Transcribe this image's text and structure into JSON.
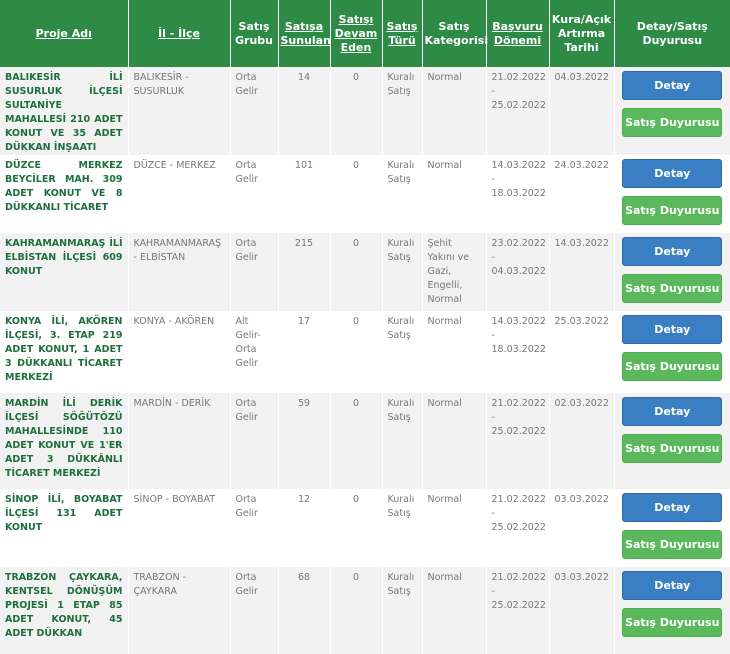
{
  "headers": {
    "proje": "Proje Adı",
    "il": "İl - İlçe",
    "satis_grubu": "Satış Grubu",
    "satisa_sunulan": "Satışa Sunulan",
    "satisi_devam": "Satışı Devam Eden",
    "satis_turu": "Satış Türü",
    "satis_kategorisi": "Satış Kategorisi",
    "basvuru_donemi": "Başvuru Dönemi",
    "kura_tarihi": "Kura/Açık Artırma Tarihi",
    "detay_duyuru": "Detay/Satış Duyurusu"
  },
  "buttons": {
    "detay": "Detay",
    "satis_duyurusu": "Satış Duyurusu"
  },
  "rows": [
    {
      "proje": "BALIKESİR İLİ SUSURLUK İLÇESİ SULTANİYE MAHALLESİ 210 ADET KONUT VE 35 ADET DÜKKAN İNŞAATI",
      "il": "BALIKESİR - SUSURLUK",
      "grup": "Orta Gelir",
      "sunulan": "14",
      "devam": "0",
      "tur": "Kuralı Satış",
      "kategori": "Normal",
      "basvuru": "21.02.2022 - 25.02.2022",
      "kura": "04.03.2022"
    },
    {
      "proje": "DÜZCE MERKEZ BEYCİLER MAH. 309 ADET KONUT VE 8 DÜKKANLI TİCARET",
      "il": "DÜZCE - MERKEZ",
      "grup": "Orta Gelir",
      "sunulan": "101",
      "devam": "0",
      "tur": "Kuralı Satış",
      "kategori": "Normal",
      "basvuru": "14.03.2022 - 18.03.2022",
      "kura": "24.03.2022"
    },
    {
      "proje": "KAHRAMANMARAŞ İLİ ELBİSTAN İLÇESİ 609 KONUT",
      "il": "KAHRAMANMARAŞ - ELBİSTAN",
      "grup": "Orta Gelir",
      "sunulan": "215",
      "devam": "0",
      "tur": "Kuralı Satış",
      "kategori": "Şehit Yakını ve Gazi, Engelli, Normal",
      "basvuru": "23.02.2022 - 04.03.2022",
      "kura": "14.03.2022"
    },
    {
      "proje": "KONYA İLİ, AKÖREN İLÇESİ, 3. ETAP 219 ADET KONUT, 1 ADET 3 DÜKKANLI TİCARET MERKEZİ",
      "il": "KONYA - AKÖREN",
      "grup": "Alt Gelir-Orta Gelir",
      "sunulan": "17",
      "devam": "0",
      "tur": "Kuralı Satış",
      "kategori": "Normal",
      "basvuru": "14.03.2022 - 18.03.2022",
      "kura": "25.03.2022"
    },
    {
      "proje": "MARDİN İLİ DERİK İLÇESİ SÖĞÜTÖZÜ MAHALLESİNDE 110 ADET KONUT VE 1'ER ADET 3 DÜKKÂNLI TİCARET MERKEZİ",
      "il": "MARDİN - DERİK",
      "grup": "Orta Gelir",
      "sunulan": "59",
      "devam": "0",
      "tur": "Kuralı Satış",
      "kategori": "Normal",
      "basvuru": "21.02.2022 - 25.02.2022",
      "kura": "02.03.2022"
    },
    {
      "proje": "SİNOP İLİ, BOYABAT İLÇESİ 131 ADET KONUT",
      "il": "SİNOP - BOYABAT",
      "grup": "Orta Gelir",
      "sunulan": "12",
      "devam": "0",
      "tur": "Kuralı Satış",
      "kategori": "Normal",
      "basvuru": "21.02.2022 - 25.02.2022",
      "kura": "03.03.2022"
    },
    {
      "proje": "TRABZON ÇAYKARA, KENTSEL DÖNÜŞÜM PROJESİ 1 ETAP 85 ADET KONUT, 45 ADET DÜKKAN",
      "il": "TRABZON - ÇAYKARA",
      "grup": "Orta Gelir",
      "sunulan": "68",
      "devam": "0",
      "tur": "Kuralı Satış",
      "kategori": "Normal",
      "basvuru": "21.02.2022 - 25.02.2022",
      "kura": "03.03.2022"
    }
  ]
}
